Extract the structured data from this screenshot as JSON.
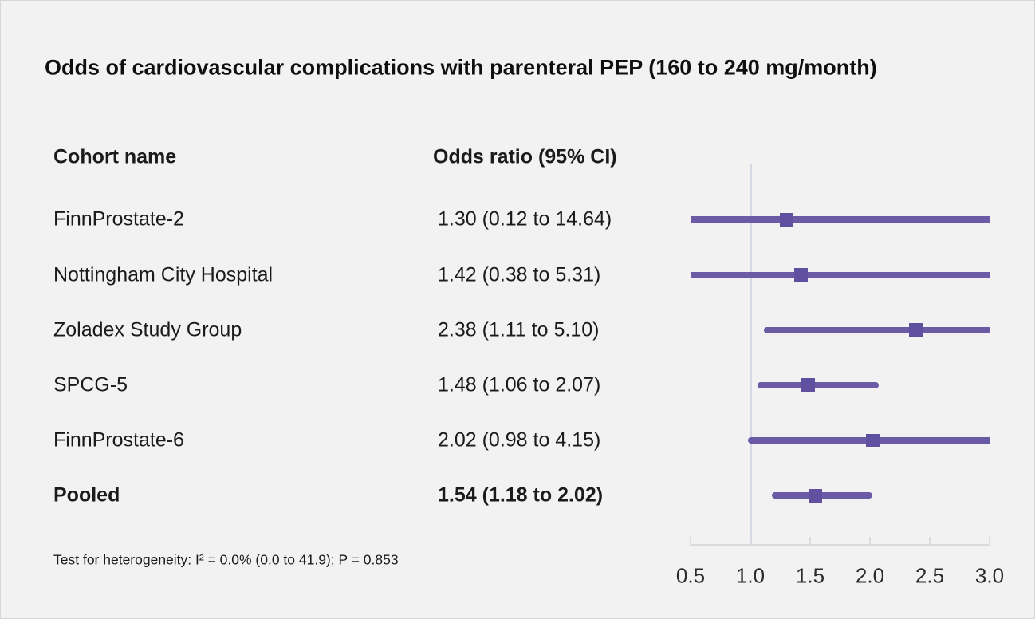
{
  "chart_data": {
    "type": "forest",
    "title": "Odds of cardiovascular complications with parenteral PEP (160 to 240 mg/month)",
    "col_headers": {
      "cohort": "Cohort name",
      "or": "Odds ratio (95% CI)"
    },
    "series": [
      {
        "cohort": "FinnProstate-2",
        "or": 1.3,
        "ci_low": 0.12,
        "ci_high": 14.64,
        "or_text": "1.30 (0.12 to 14.64)",
        "pooled": false
      },
      {
        "cohort": "Nottingham City Hospital",
        "or": 1.42,
        "ci_low": 0.38,
        "ci_high": 5.31,
        "or_text": "1.42 (0.38 to 5.31)",
        "pooled": false
      },
      {
        "cohort": "Zoladex Study Group",
        "or": 2.38,
        "ci_low": 1.11,
        "ci_high": 5.1,
        "or_text": "2.38 (1.11 to 5.10)",
        "pooled": false
      },
      {
        "cohort": "SPCG-5",
        "or": 1.48,
        "ci_low": 1.06,
        "ci_high": 2.07,
        "or_text": "1.48 (1.06 to 2.07)",
        "pooled": false
      },
      {
        "cohort": "FinnProstate-6",
        "or": 2.02,
        "ci_low": 0.98,
        "ci_high": 4.15,
        "or_text": "2.02 (0.98 to 4.15)",
        "pooled": false
      },
      {
        "cohort": "Pooled",
        "or": 1.54,
        "ci_low": 1.18,
        "ci_high": 2.02,
        "or_text": "1.54 (1.18 to 2.02)",
        "pooled": true
      }
    ],
    "xlim": [
      0.5,
      3.0
    ],
    "x_tick_labels": [
      "0.5",
      "1.0",
      "1.5",
      "2.0",
      "2.5",
      "3.0"
    ],
    "reference_line_x": 1.0,
    "annotation": "Test for heterogeneity: I² = 0.0% (0.0 to 41.9); P = 0.853",
    "grid": false,
    "legend": "none"
  },
  "colors": {
    "background": "#f2f2f2",
    "ci_line": "#6b5ba7",
    "marker": "#5f50a0",
    "reference_line": "#d4d8e2",
    "axis": "#d9dbdf",
    "text": "#1b1b1b"
  }
}
